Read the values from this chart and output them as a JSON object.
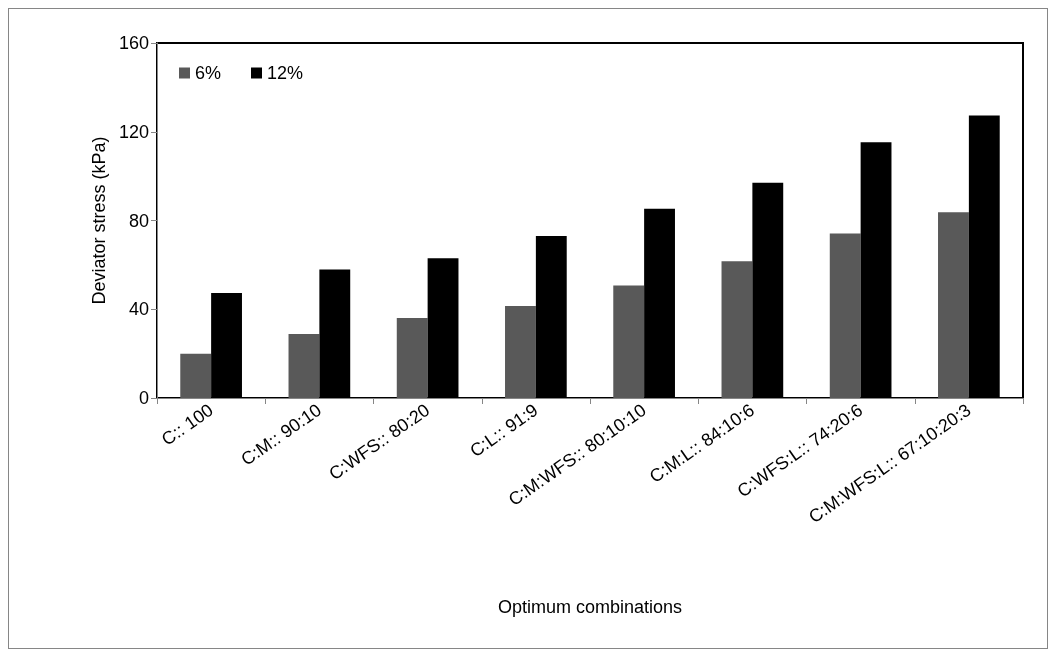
{
  "chart_data": {
    "type": "bar",
    "xlabel": "Optimum combinations",
    "ylabel": "Deviator stress (kPa)",
    "categories": [
      "C:: 100",
      "C:M:: 90:10",
      "C:WFS:: 80:20",
      "C:L:: 91:9",
      "C:M:WFS:: 80:10:10",
      "C:M:L:: 84:10:6",
      "C:WFS:L:: 74:20:6",
      "C:M:WFS:L:: 67:10:20:3"
    ],
    "series": [
      {
        "name": "6%",
        "color": "#595959",
        "values": [
          20,
          28.9,
          36.1,
          41.5,
          50.7,
          61.6,
          74.1,
          83.7
        ]
      },
      {
        "name": "12%",
        "color": "#000000",
        "values": [
          47.3,
          57.9,
          63,
          73,
          85.3,
          97,
          115.3,
          127.3
        ]
      }
    ],
    "ylim": [
      0,
      160
    ],
    "yticks": [
      0,
      40,
      80,
      120,
      160
    ],
    "grid": false,
    "legend": "top left"
  }
}
